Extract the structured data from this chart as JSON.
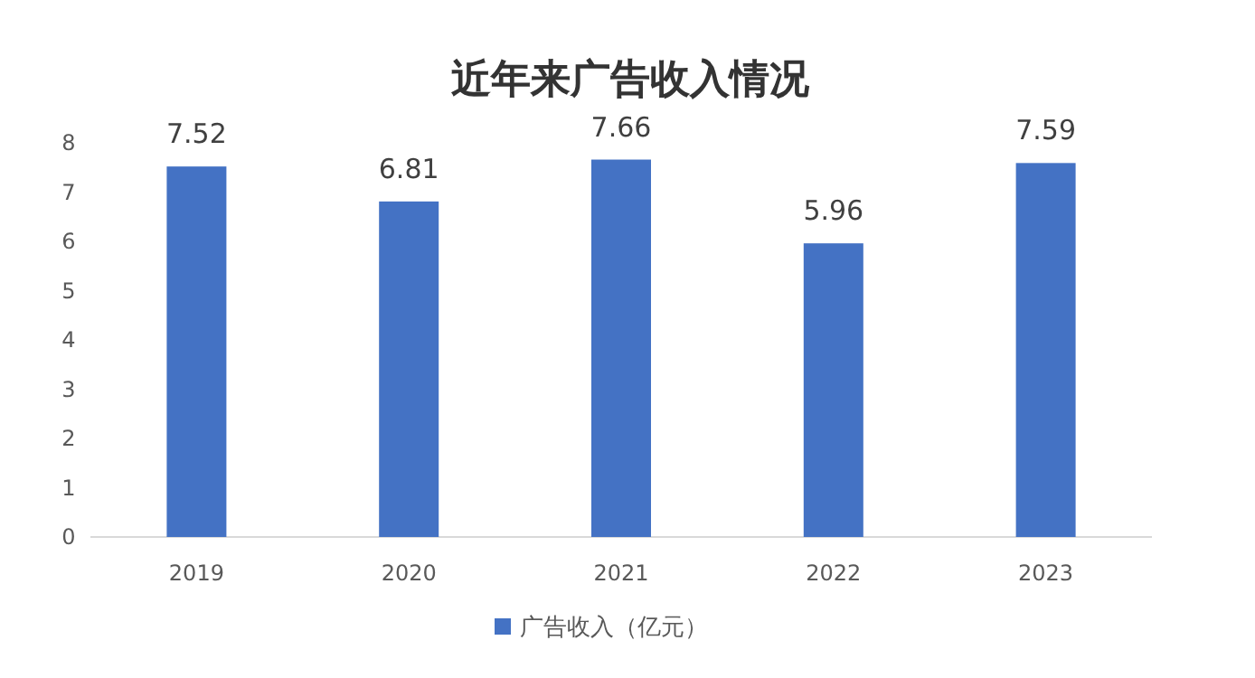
{
  "chart_data": {
    "type": "bar",
    "title": "近年来广告收入情况",
    "categories": [
      "2019",
      "2020",
      "2021",
      "2022",
      "2023"
    ],
    "series": [
      {
        "name": "广告收入（亿元）",
        "color": "#4472c4",
        "values": [
          7.52,
          6.81,
          7.66,
          5.96,
          7.59
        ]
      }
    ],
    "ylim": [
      0,
      8
    ],
    "yticks": [
      0,
      1,
      2,
      3,
      4,
      5,
      6,
      7,
      8
    ],
    "data_labels": true,
    "legend": "bottom"
  }
}
